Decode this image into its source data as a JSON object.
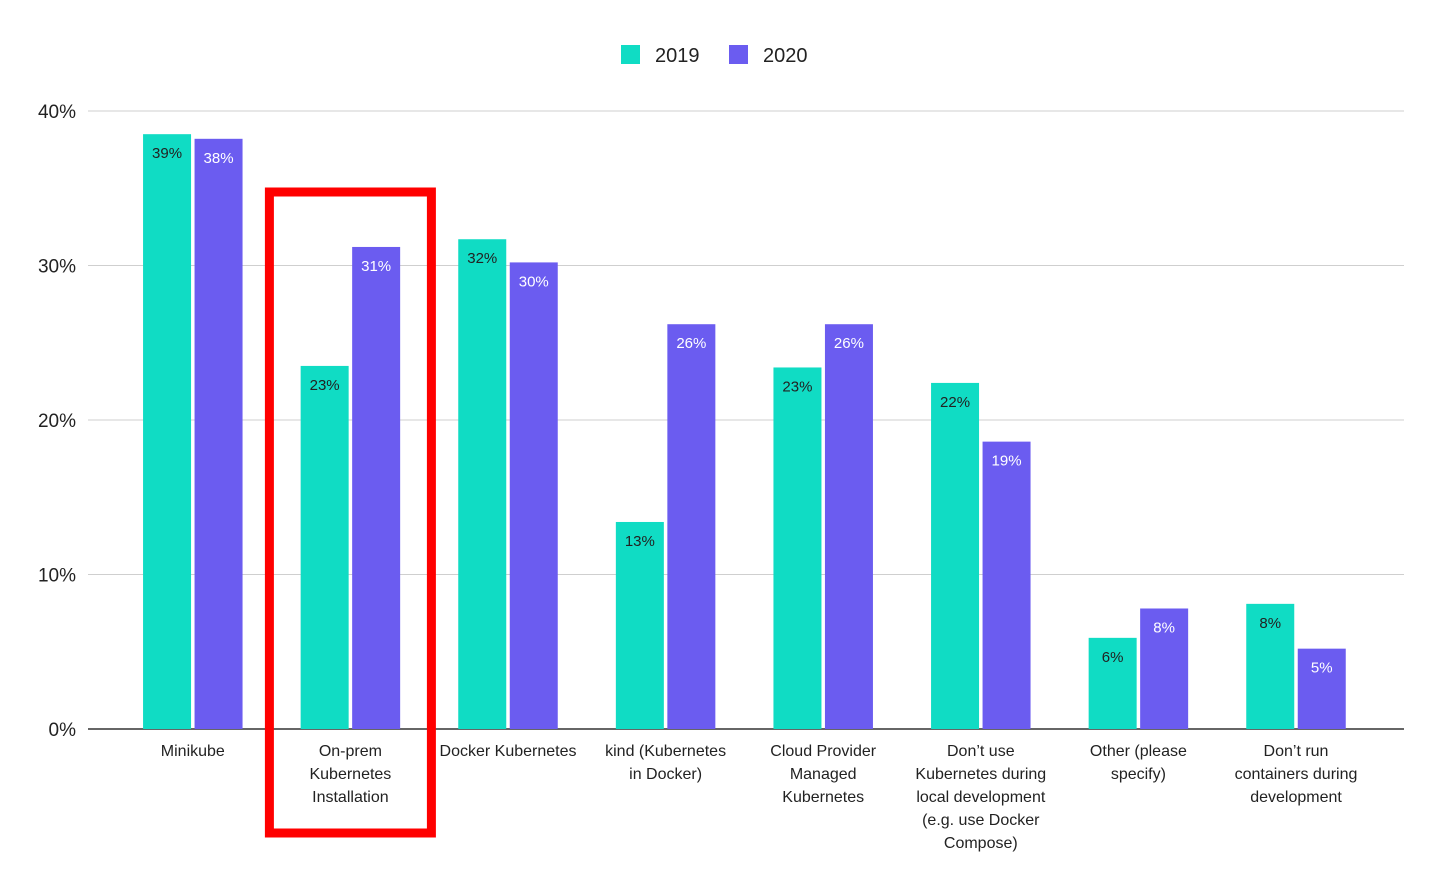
{
  "chart_data": {
    "type": "bar",
    "categories": [
      [
        "Minikube"
      ],
      [
        "On-prem",
        "Kubernetes",
        "Installation"
      ],
      [
        "Docker Kubernetes"
      ],
      [
        "kind (Kubernetes",
        "in Docker)"
      ],
      [
        "Cloud Provider",
        "Managed",
        "Kubernetes"
      ],
      [
        "Don’t use",
        "Kubernetes during",
        "local development",
        "(e.g. use Docker",
        "Compose)"
      ],
      [
        "Other (please",
        "specify)"
      ],
      [
        "Don’t run",
        "containers during",
        "development"
      ]
    ],
    "series": [
      {
        "name": "2019",
        "color": "#10dcc4",
        "values": [
          38.5,
          23.5,
          31.7,
          13.4,
          23.4,
          22.4,
          5.9,
          8.1
        ],
        "labels": [
          "39%",
          "23%",
          "32%",
          "13%",
          "23%",
          "22%",
          "6%",
          "8%"
        ],
        "label_color": "#222222"
      },
      {
        "name": "2020",
        "color": "#6b5cf0",
        "values": [
          38.2,
          31.2,
          30.2,
          26.2,
          26.2,
          18.6,
          7.8,
          5.2
        ],
        "labels": [
          "38%",
          "31%",
          "30%",
          "26%",
          "26%",
          "19%",
          "8%",
          "5%"
        ],
        "label_color": "#ffffff"
      }
    ],
    "ylim": [
      0,
      40
    ],
    "yticks": [
      0,
      10,
      20,
      30,
      40
    ],
    "ytick_labels": [
      "0%",
      "10%",
      "20%",
      "30%",
      "40%"
    ],
    "grid": true,
    "legend": "top-center",
    "highlight": {
      "category_index": 1,
      "color": "#ff0000"
    }
  }
}
